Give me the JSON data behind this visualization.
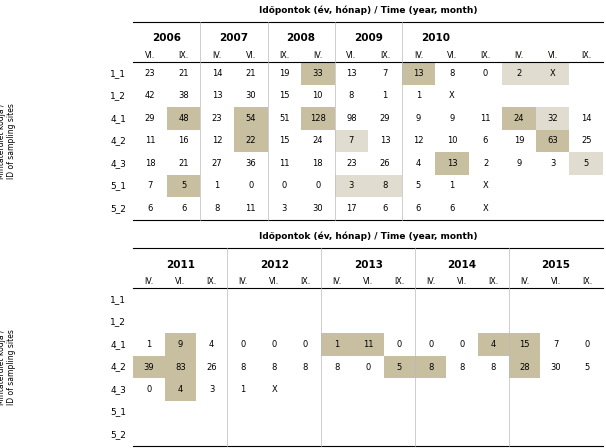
{
  "table1": {
    "title": "Időpontok (év, hónap) / Time (year, month)",
    "years": [
      "2006",
      "2007",
      "2008",
      "2009",
      "2010"
    ],
    "col_headers": [
      "VI.",
      "IX.",
      "IV.",
      "VI.",
      "IX.",
      "IV.",
      "VI.",
      "IX.",
      "IV.",
      "VI.",
      "IX.",
      "IV.",
      "VI.",
      "IX."
    ],
    "row_labels": [
      "1_1",
      "1_2",
      "4_1",
      "4_2",
      "4_3",
      "5_1",
      "5_2"
    ],
    "data": [
      [
        "23",
        "21",
        "14",
        "21",
        "19",
        "33",
        "13",
        "7",
        "13",
        "8",
        "0",
        "2",
        "X",
        ""
      ],
      [
        "42",
        "38",
        "13",
        "30",
        "15",
        "10",
        "8",
        "1",
        "1",
        "X",
        "",
        "",
        "",
        ""
      ],
      [
        "29",
        "48",
        "23",
        "54",
        "51",
        "128",
        "98",
        "29",
        "9",
        "9",
        "11",
        "24",
        "32",
        "14"
      ],
      [
        "11",
        "16",
        "12",
        "22",
        "15",
        "24",
        "7",
        "13",
        "12",
        "10",
        "6",
        "19",
        "63",
        "25"
      ],
      [
        "18",
        "21",
        "27",
        "36",
        "11",
        "18",
        "23",
        "26",
        "4",
        "13",
        "2",
        "9",
        "3",
        "5"
      ],
      [
        "7",
        "5",
        "1",
        "0",
        "0",
        "0",
        "3",
        "8",
        "5",
        "1",
        "X",
        "",
        "",
        ""
      ],
      [
        "6",
        "6",
        "8",
        "11",
        "3",
        "30",
        "17",
        "6",
        "6",
        "6",
        "X",
        "",
        "",
        ""
      ]
    ],
    "highlights": [
      [
        0,
        5,
        "#c8bfa0"
      ],
      [
        0,
        8,
        "#c8bfa0"
      ],
      [
        0,
        11,
        "#e0ddd0"
      ],
      [
        0,
        12,
        "#e0ddd0"
      ],
      [
        2,
        1,
        "#c8bfa0"
      ],
      [
        2,
        3,
        "#c8bfa0"
      ],
      [
        2,
        5,
        "#c8bfa0"
      ],
      [
        2,
        11,
        "#c8bfa0"
      ],
      [
        2,
        12,
        "#e0ddd0"
      ],
      [
        3,
        3,
        "#c8bfa0"
      ],
      [
        3,
        6,
        "#e0ddd0"
      ],
      [
        3,
        12,
        "#c8bfa0"
      ],
      [
        4,
        9,
        "#c8bfa0"
      ],
      [
        4,
        13,
        "#e0ddd0"
      ],
      [
        5,
        1,
        "#c8bfa0"
      ],
      [
        5,
        6,
        "#e0ddd0"
      ],
      [
        5,
        7,
        "#e0ddd0"
      ]
    ]
  },
  "table2": {
    "title": "Időpontok (év, hónap) / Time (year, month)",
    "years": [
      "2011",
      "2012",
      "2013",
      "2014",
      "2015"
    ],
    "col_headers": [
      "IV.",
      "VI.",
      "IX.",
      "IV.",
      "VI.",
      "IX.",
      "IV.",
      "VI.",
      "IX.",
      "IV.",
      "VI.",
      "IX.",
      "IV.",
      "VI.",
      "IX."
    ],
    "row_labels": [
      "1_1",
      "1_2",
      "4_1",
      "4_2",
      "4_3",
      "5_1",
      "5_2"
    ],
    "data": [
      [
        "",
        "",
        "",
        "",
        "",
        "",
        "",
        "",
        "",
        "",
        "",
        "",
        "",
        "",
        ""
      ],
      [
        "",
        "",
        "",
        "",
        "",
        "",
        "",
        "",
        "",
        "",
        "",
        "",
        "",
        "",
        ""
      ],
      [
        "1",
        "9",
        "4",
        "0",
        "0",
        "0",
        "1",
        "11",
        "0",
        "0",
        "0",
        "4",
        "15",
        "7",
        "0"
      ],
      [
        "39",
        "83",
        "26",
        "8",
        "8",
        "8",
        "8",
        "0",
        "5",
        "8",
        "8",
        "8",
        "28",
        "30",
        "5"
      ],
      [
        "0",
        "4",
        "3",
        "1",
        "X",
        "",
        "",
        "",
        "",
        "",
        "",
        "",
        "",
        "",
        ""
      ],
      [
        "",
        "",
        "",
        "",
        "",
        "",
        "",
        "",
        "",
        "",
        "",
        "",
        "",
        "",
        ""
      ],
      [
        "",
        "",
        "",
        "",
        "",
        "",
        "",
        "",
        "",
        "",
        "",
        "",
        "",
        "",
        ""
      ]
    ],
    "highlights": [
      [
        2,
        1,
        "#c8bfa0"
      ],
      [
        3,
        0,
        "#c8bfa0"
      ],
      [
        3,
        1,
        "#c8bfa0"
      ],
      [
        4,
        1,
        "#c8bfa0"
      ],
      [
        2,
        6,
        "#c8bfa0"
      ],
      [
        2,
        7,
        "#c8bfa0"
      ],
      [
        3,
        8,
        "#c8bfa0"
      ],
      [
        3,
        9,
        "#c8bfa0"
      ],
      [
        2,
        11,
        "#c8bfa0"
      ],
      [
        2,
        12,
        "#c8bfa0"
      ],
      [
        3,
        12,
        "#c8bfa0"
      ]
    ]
  },
  "ylabel_line1": "Mintaterület kódja /",
  "ylabel_line2": "ID of sampling sites",
  "bg_color": "#ffffff"
}
